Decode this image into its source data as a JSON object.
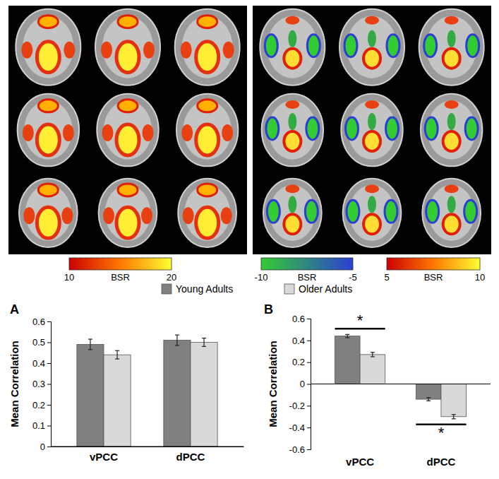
{
  "chart_data": [
    {
      "type": "bar",
      "title": "A",
      "ylabel": "Mean Correlation",
      "categories": [
        "vPCC",
        "dPCC"
      ],
      "series": [
        {
          "name": "Young Adults",
          "color": "#808080",
          "values": [
            0.49,
            0.51
          ],
          "errors": [
            0.025,
            0.025
          ]
        },
        {
          "name": "Older Adults",
          "color": "#d9d9d9",
          "values": [
            0.44,
            0.5
          ],
          "errors": [
            0.02,
            0.02
          ]
        }
      ],
      "ylim": [
        0,
        0.6
      ],
      "yticks": [
        0,
        0.1,
        0.2,
        0.3,
        0.4,
        0.5,
        0.6
      ],
      "legend": "top"
    },
    {
      "type": "bar",
      "title": "B",
      "ylabel": "Mean Correlation",
      "categories": [
        "vPCC",
        "dPCC"
      ],
      "series": [
        {
          "name": "Young Adults",
          "color": "#808080",
          "values": [
            0.44,
            -0.14
          ],
          "errors": [
            0.015,
            0.015
          ]
        },
        {
          "name": "Older Adults",
          "color": "#d9d9d9",
          "values": [
            0.27,
            -0.3
          ],
          "errors": [
            0.02,
            0.02
          ]
        }
      ],
      "ylim": [
        -0.6,
        0.6
      ],
      "yticks": [
        -0.6,
        -0.4,
        -0.2,
        0,
        0.2,
        0.4,
        0.6
      ],
      "annotations": [
        {
          "text": "*",
          "category": "vPCC"
        },
        {
          "text": "*",
          "category": "dPCC"
        }
      ]
    }
  ],
  "colorbars": [
    {
      "label": "BSR",
      "range": [
        10,
        20
      ],
      "ticks": [
        10,
        20
      ],
      "colors": [
        "#cc0000",
        "#ff7700",
        "#ffff33"
      ]
    },
    {
      "label": "BSR",
      "range": [
        -10,
        -5
      ],
      "ticks": [
        -10,
        -5
      ],
      "colors": [
        "#33cc33",
        "#2b3fd1"
      ]
    },
    {
      "label": "BSR",
      "range": [
        5,
        10
      ],
      "ticks": [
        5,
        10
      ],
      "colors": [
        "#cc0000",
        "#ff7700",
        "#ffff33"
      ]
    }
  ]
}
